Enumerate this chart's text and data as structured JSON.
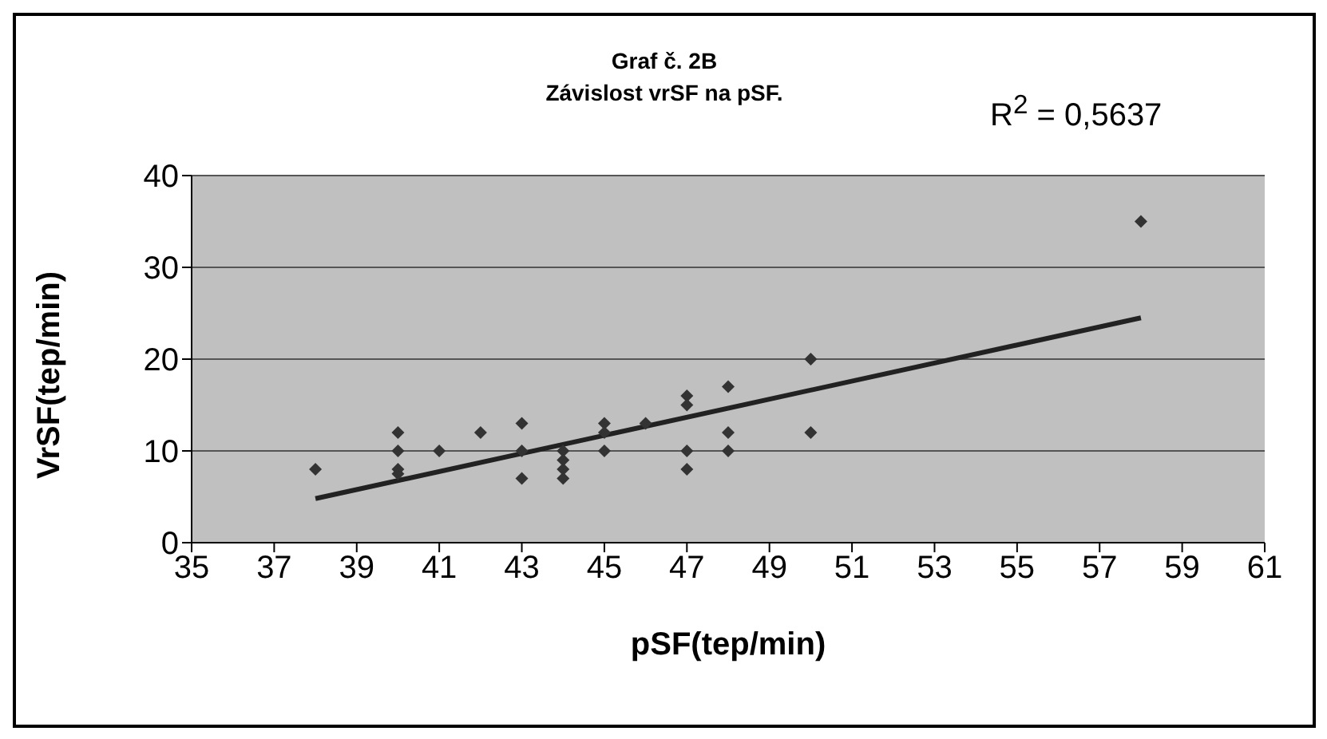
{
  "chart_data": {
    "type": "scatter",
    "title": "Graf č. 2B",
    "subtitle": "Závislost vrSF na pSF.",
    "xlabel": "pSF(tep/min)",
    "ylabel": "VrSF(tep/min)",
    "annotations": [
      "R$^{2}$ = 0,5637"
    ],
    "xlim": [
      35,
      61
    ],
    "xticks": [
      35,
      37,
      39,
      41,
      43,
      45,
      47,
      49,
      51,
      53,
      55,
      57,
      59,
      61
    ],
    "ylim": [
      0,
      40
    ],
    "yticks": [
      0,
      10,
      20,
      30,
      40
    ],
    "grid": "y",
    "marker": "diamond",
    "series": [
      {
        "color": "#333333",
        "x": [
          38,
          40,
          40,
          40,
          40,
          41,
          42,
          43,
          43,
          43,
          44,
          44,
          44,
          44,
          45,
          45,
          45,
          46,
          47,
          47,
          47,
          47,
          48,
          48,
          48,
          50,
          50,
          58
        ],
        "values": [
          8,
          12,
          10,
          8,
          7.5,
          10,
          12,
          13,
          10,
          7,
          10,
          9,
          8,
          7,
          13,
          12,
          10,
          13,
          16,
          15,
          10,
          8,
          17,
          12,
          10,
          20,
          12,
          35
        ]
      },
      {
        "type": "line",
        "color": "#222222",
        "x": [
          38,
          58
        ],
        "values": [
          4.8,
          24.5
        ],
        "marker": "none",
        "line_style": "solid"
      }
    ]
  }
}
